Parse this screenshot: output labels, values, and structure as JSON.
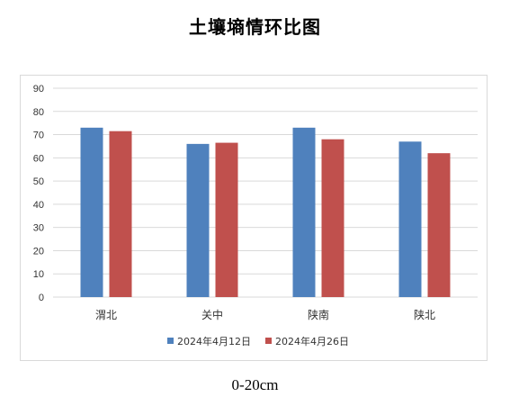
{
  "title": "土壤墒情环比图",
  "caption": "0-20cm",
  "colors": {
    "series1": "#4f81bd",
    "series2": "#c0504d",
    "grid": "#d9d9d9"
  },
  "chart_data": {
    "type": "bar",
    "categories": [
      "渭北",
      "关中",
      "陕南",
      "陕北"
    ],
    "series": [
      {
        "name": "2024年4月12日",
        "values": [
          73,
          66,
          73,
          67
        ]
      },
      {
        "name": "2024年4月26日",
        "values": [
          71.5,
          66.5,
          68,
          62
        ]
      }
    ],
    "ylim": [
      0,
      90
    ],
    "yticks": [
      0,
      10,
      20,
      30,
      40,
      50,
      60,
      70,
      80,
      90
    ],
    "grid": true,
    "legend": "bottom"
  }
}
